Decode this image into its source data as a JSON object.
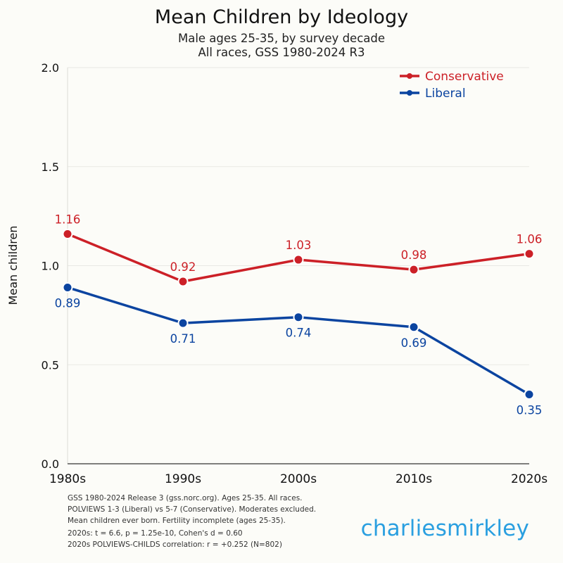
{
  "chart_data": {
    "type": "line",
    "title": "Mean Children by Ideology",
    "subtitle_lines": [
      "Male ages 25-35, by survey decade",
      "All races, GSS 1980-2024 R3"
    ],
    "xlabel": "",
    "ylabel": "Mean children",
    "categories": [
      "1980s",
      "1990s",
      "2000s",
      "2010s",
      "2020s"
    ],
    "ylim": [
      0,
      2.0
    ],
    "yticks": [
      0.0,
      0.5,
      1.0,
      1.5,
      2.0
    ],
    "ytick_labels": [
      "0.0",
      "0.5",
      "1.0",
      "1.5",
      "2.0"
    ],
    "grid": true,
    "legend_position": "top-right",
    "series": [
      {
        "name": "Conservative",
        "color": "#cc2027",
        "values": [
          1.16,
          0.92,
          1.03,
          0.98,
          1.06
        ],
        "labels": [
          "1.16",
          "0.92",
          "1.03",
          "0.98",
          "1.06"
        ],
        "label_position": "above"
      },
      {
        "name": "Liberal",
        "color": "#0b44a0",
        "values": [
          0.89,
          0.71,
          0.74,
          0.69,
          0.35
        ],
        "labels": [
          "0.89",
          "0.71",
          "0.74",
          "0.69",
          "0.35"
        ],
        "label_position": "below"
      }
    ]
  },
  "footer": {
    "lines_a": [
      "GSS 1980-2024 Release 3 (gss.norc.org). Ages 25-35. All races.",
      "POLVIEWS 1-3 (Liberal) vs 5-7 (Conservative). Moderates excluded.",
      "Mean children ever born. Fertility incomplete (ages 25-35)."
    ],
    "lines_b": [
      "2020s: t = 6.6, p = 1.25e-10, Cohen's d = 0.60",
      "2020s POLVIEWS-CHILDS correlation: r = +0.252 (N=802)"
    ]
  },
  "brand": "charliesmirkley"
}
